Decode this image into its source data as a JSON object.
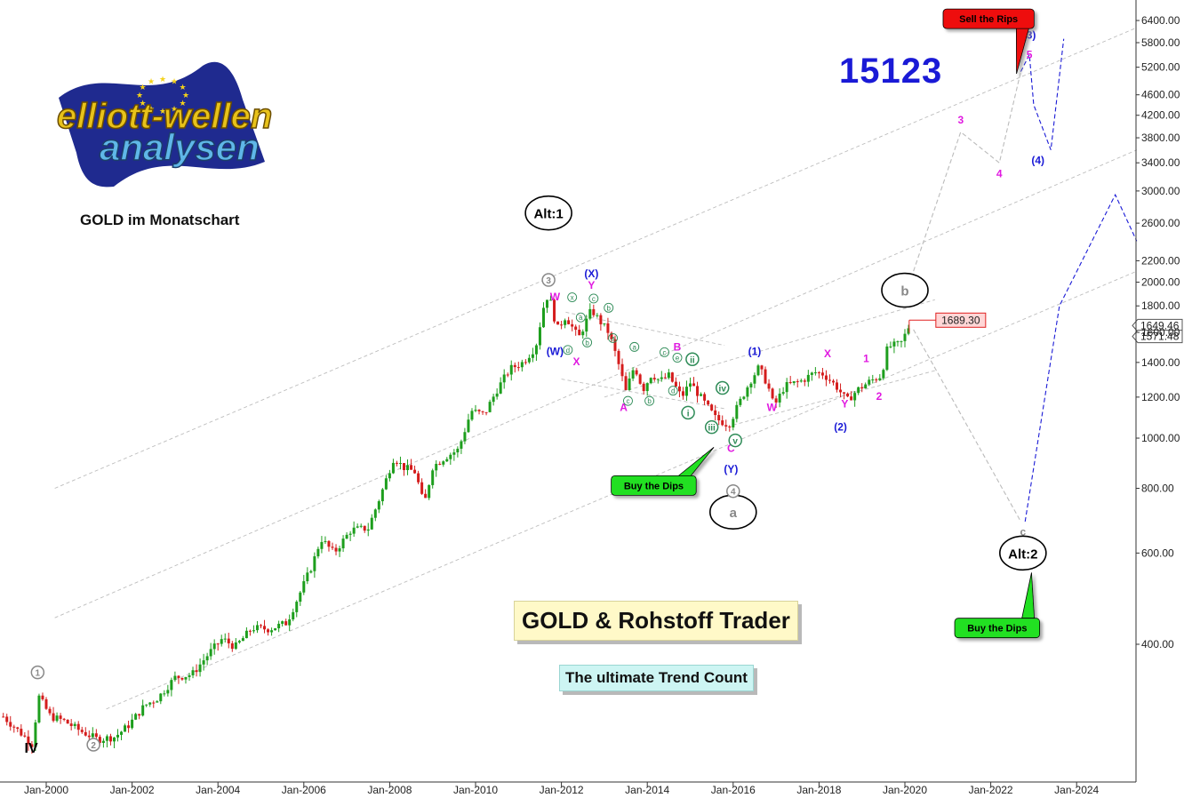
{
  "header": {
    "title": "GOLD im Monatschart",
    "ticker_id": "15123"
  },
  "logo": {
    "line1": "elliott-wellen",
    "line2": "analysen",
    "colors": {
      "flag": "#1f2a8f",
      "stars": "#f4d21a",
      "gold_text": "#e8c21a",
      "blue_text": "#5fb7e8"
    }
  },
  "promo": {
    "main": "GOLD & Rohstoff Trader",
    "sub": "The ultimate Trend Count"
  },
  "chart_data": {
    "type": "candlestick",
    "scale": "log",
    "ylim": [
      250,
      7000
    ],
    "xlim": [
      "1999-01",
      "2025-06"
    ],
    "y_ticks": [
      "400.00",
      "600.00",
      "800.00",
      "1000.00",
      "1200.00",
      "1400.00",
      "1600.00",
      "1800.00",
      "2000.00",
      "2200.00",
      "2600.00",
      "3000.00",
      "3400.00",
      "3800.00",
      "4200.00",
      "4600.00",
      "5200.00",
      "5800.00",
      "6400.00"
    ],
    "y_tick_values": [
      400,
      600,
      800,
      1000,
      1200,
      1400,
      1600,
      1800,
      2000,
      2200,
      2600,
      3000,
      3400,
      3800,
      4200,
      4600,
      5200,
      5800,
      6400
    ],
    "x_ticks": [
      "Jan-2000",
      "Jan-2002",
      "Jan-2004",
      "Jan-2006",
      "Jan-2008",
      "Jan-2010",
      "Jan-2012",
      "Jan-2014",
      "Jan-2016",
      "Jan-2018",
      "Jan-2020",
      "Jan-2022",
      "Jan-2024"
    ],
    "x_tick_values": [
      2000,
      2002,
      2004,
      2006,
      2008,
      2010,
      2012,
      2014,
      2016,
      2018,
      2020,
      2022,
      2024
    ],
    "price_labels": [
      {
        "text": "1649.46",
        "value": 1649.46,
        "style": "axis"
      },
      {
        "text": "1571.48",
        "value": 1571.48,
        "style": "axis"
      },
      {
        "text": "1689.30",
        "value": 1689.3,
        "style": "marker",
        "t": 2020.1
      }
    ],
    "price_path": [
      [
        1999.0,
        290
      ],
      [
        1999.4,
        270
      ],
      [
        1999.7,
        255
      ],
      [
        1999.8,
        320
      ],
      [
        2000.1,
        290
      ],
      [
        2000.4,
        285
      ],
      [
        2000.8,
        272
      ],
      [
        2001.2,
        262
      ],
      [
        2001.6,
        265
      ],
      [
        2001.9,
        278
      ],
      [
        2002.3,
        305
      ],
      [
        2002.6,
        315
      ],
      [
        2003.0,
        345
      ],
      [
        2003.4,
        350
      ],
      [
        2003.8,
        385
      ],
      [
        2004.1,
        410
      ],
      [
        2004.4,
        395
      ],
      [
        2004.8,
        430
      ],
      [
        2005.2,
        428
      ],
      [
        2005.6,
        440
      ],
      [
        2005.9,
        500
      ],
      [
        2006.2,
        570
      ],
      [
        2006.4,
        640
      ],
      [
        2006.7,
        600
      ],
      [
        2007.1,
        665
      ],
      [
        2007.5,
        670
      ],
      [
        2007.8,
        780
      ],
      [
        2008.1,
        920
      ],
      [
        2008.3,
        880
      ],
      [
        2008.6,
        860
      ],
      [
        2008.8,
        740
      ],
      [
        2009.0,
        880
      ],
      [
        2009.3,
        920
      ],
      [
        2009.6,
        950
      ],
      [
        2009.9,
        1130
      ],
      [
        2010.2,
        1110
      ],
      [
        2010.5,
        1240
      ],
      [
        2010.8,
        1360
      ],
      [
        2011.1,
        1400
      ],
      [
        2011.4,
        1500
      ],
      [
        2011.6,
        1820
      ],
      [
        2011.7,
        1900
      ],
      [
        2011.9,
        1620
      ],
      [
        2012.1,
        1720
      ],
      [
        2012.4,
        1560
      ],
      [
        2012.7,
        1770
      ],
      [
        2012.9,
        1680
      ],
      [
        2013.1,
        1600
      ],
      [
        2013.3,
        1420
      ],
      [
        2013.5,
        1230
      ],
      [
        2013.7,
        1380
      ],
      [
        2013.9,
        1240
      ],
      [
        2014.1,
        1330
      ],
      [
        2014.3,
        1290
      ],
      [
        2014.5,
        1320
      ],
      [
        2014.8,
        1200
      ],
      [
        2015.0,
        1280
      ],
      [
        2015.3,
        1180
      ],
      [
        2015.6,
        1090
      ],
      [
        2015.9,
        1060
      ],
      [
        2016.1,
        1150
      ],
      [
        2016.4,
        1290
      ],
      [
        2016.6,
        1370
      ],
      [
        2016.8,
        1270
      ],
      [
        2016.95,
        1150
      ],
      [
        2017.2,
        1260
      ],
      [
        2017.6,
        1290
      ],
      [
        2017.9,
        1340
      ],
      [
        2018.1,
        1330
      ],
      [
        2018.4,
        1260
      ],
      [
        2018.65,
        1180
      ],
      [
        2018.9,
        1240
      ],
      [
        2019.2,
        1290
      ],
      [
        2019.45,
        1320
      ],
      [
        2019.6,
        1500
      ],
      [
        2019.9,
        1520
      ],
      [
        2020.0,
        1580
      ],
      [
        2020.1,
        1650
      ]
    ],
    "projections": [
      {
        "name": "grey-path-up",
        "color": "#bbbbbb",
        "points": [
          [
            2020.2,
            2100
          ],
          [
            2021.3,
            3900
          ],
          [
            2022.2,
            3400
          ],
          [
            2022.7,
            5100
          ]
        ]
      },
      {
        "name": "grey-path-down",
        "color": "#bbbbbb",
        "points": [
          [
            2020.2,
            1620
          ],
          [
            2022.7,
            690
          ]
        ]
      },
      {
        "name": "blue-path-up",
        "color": "#1a1ad6",
        "points": [
          [
            2022.7,
            5100
          ],
          [
            2022.9,
            5500
          ],
          [
            2023.0,
            4400
          ],
          [
            2023.4,
            3600
          ],
          [
            2023.7,
            5900
          ]
        ]
      },
      {
        "name": "blue-path-alt",
        "color": "#1a1ad6",
        "points": [
          [
            2022.8,
            690
          ],
          [
            2023.6,
            1800
          ],
          [
            2024.9,
            2950
          ],
          [
            2025.4,
            2400
          ]
        ]
      }
    ],
    "channels": [
      {
        "from": [
          2000.2,
          800
        ],
        "to": [
          2025.4,
          6200
        ]
      },
      {
        "from": [
          2000.2,
          450
        ],
        "to": [
          2025.4,
          3600
        ]
      },
      {
        "from": [
          2001.4,
          300
        ],
        "to": [
          2025.4,
          2100
        ]
      },
      {
        "from": [
          2013.0,
          1200
        ],
        "to": [
          2020.7,
          1850
        ]
      },
      {
        "from": [
          2016.0,
          1060
        ],
        "to": [
          2020.7,
          1350
        ]
      },
      {
        "from": [
          2012.1,
          1750
        ],
        "to": [
          2015.8,
          1510
        ]
      },
      {
        "from": [
          2012.0,
          1300
        ],
        "to": [
          2015.8,
          1140
        ]
      }
    ],
    "labels": [
      {
        "text": "Alt:1",
        "t": 2011.7,
        "v": 2720,
        "color": "#000000",
        "style": "ellipse"
      },
      {
        "text": "b",
        "t": 2020.0,
        "v": 1930,
        "color": "#888888",
        "style": "ellipse"
      },
      {
        "text": "a",
        "t": 2016.0,
        "v": 720,
        "color": "#888888",
        "style": "ellipse"
      },
      {
        "text": "Alt:2",
        "t": 2022.75,
        "v": 600,
        "color": "#000000",
        "style": "ellipse"
      },
      {
        "text": "c",
        "t": 2022.75,
        "v": 662,
        "color": "#888888",
        "style": "plain"
      },
      {
        "text": "3",
        "t": 2011.7,
        "v": 2020,
        "color": "#888888",
        "style": "circle"
      },
      {
        "text": "4",
        "t": 2016.0,
        "v": 790,
        "color": "#888888",
        "style": "circle"
      },
      {
        "text": "1",
        "t": 1999.8,
        "v": 353,
        "color": "#888888",
        "style": "circle"
      },
      {
        "text": "2",
        "t": 2001.1,
        "v": 256,
        "color": "#888888",
        "style": "circle"
      },
      {
        "text": "IV",
        "t": 1999.65,
        "v": 252,
        "color": "#000000",
        "style": "bold"
      },
      {
        "text": "(X)",
        "t": 2012.7,
        "v": 2085,
        "color": "#1a1ad6",
        "style": "plain"
      },
      {
        "text": "Y",
        "t": 2012.7,
        "v": 1980,
        "color": "#e01ae0",
        "style": "plain"
      },
      {
        "text": "W",
        "t": 2011.85,
        "v": 1880,
        "color": "#e01ae0",
        "style": "plain"
      },
      {
        "text": "(W)",
        "t": 2011.85,
        "v": 1475,
        "color": "#1a1ad6",
        "style": "plain"
      },
      {
        "text": "X",
        "t": 2012.35,
        "v": 1410,
        "color": "#e01ae0",
        "style": "plain"
      },
      {
        "text": "B",
        "t": 2014.7,
        "v": 1505,
        "color": "#e01ae0",
        "style": "plain"
      },
      {
        "text": "A",
        "t": 2013.45,
        "v": 1150,
        "color": "#e01ae0",
        "style": "plain"
      },
      {
        "text": "C",
        "t": 2015.95,
        "v": 960,
        "color": "#e01ae0",
        "style": "plain"
      },
      {
        "text": "(Y)",
        "t": 2015.95,
        "v": 875,
        "color": "#1a1ad6",
        "style": "plain"
      },
      {
        "text": "(1)",
        "t": 2016.5,
        "v": 1475,
        "color": "#1a1ad6",
        "style": "plain"
      },
      {
        "text": "W",
        "t": 2016.9,
        "v": 1150,
        "color": "#e01ae0",
        "style": "plain"
      },
      {
        "text": "X",
        "t": 2018.2,
        "v": 1460,
        "color": "#e01ae0",
        "style": "plain"
      },
      {
        "text": "1",
        "t": 2019.1,
        "v": 1430,
        "color": "#e01ae0",
        "style": "plain"
      },
      {
        "text": "Y",
        "t": 2018.6,
        "v": 1170,
        "color": "#e01ae0",
        "style": "plain"
      },
      {
        "text": "2",
        "t": 2019.4,
        "v": 1210,
        "color": "#e01ae0",
        "style": "plain"
      },
      {
        "text": "(2)",
        "t": 2018.5,
        "v": 1055,
        "color": "#1a1ad6",
        "style": "plain"
      },
      {
        "text": "3",
        "t": 2021.3,
        "v": 4130,
        "color": "#e01ae0",
        "style": "plain"
      },
      {
        "text": "4",
        "t": 2022.2,
        "v": 3250,
        "color": "#e01ae0",
        "style": "plain"
      },
      {
        "text": "(3)",
        "t": 2022.9,
        "v": 6020,
        "color": "#1a1ad6",
        "style": "plain"
      },
      {
        "text": "5",
        "t": 2022.9,
        "v": 5520,
        "color": "#e01ae0",
        "style": "plain"
      },
      {
        "text": "(4)",
        "t": 2023.1,
        "v": 3450,
        "color": "#1a1ad6",
        "style": "plain"
      },
      {
        "text": "ii",
        "t": 2015.05,
        "v": 1420,
        "color": "#2e8b57",
        "style": "circle"
      },
      {
        "text": "i",
        "t": 2014.95,
        "v": 1120,
        "color": "#2e8b57",
        "style": "circle"
      },
      {
        "text": "iii",
        "t": 2015.5,
        "v": 1050,
        "color": "#2e8b57",
        "style": "circle"
      },
      {
        "text": "iv",
        "t": 2015.75,
        "v": 1250,
        "color": "#2e8b57",
        "style": "circle"
      },
      {
        "text": "v",
        "t": 2016.05,
        "v": 990,
        "color": "#2e8b57",
        "style": "circle"
      },
      {
        "text": "x",
        "t": 2012.25,
        "v": 1870,
        "color": "#2e8b57",
        "style": "small"
      },
      {
        "text": "a",
        "t": 2012.45,
        "v": 1710,
        "color": "#2e8b57",
        "style": "small"
      },
      {
        "text": "c",
        "t": 2012.75,
        "v": 1860,
        "color": "#2e8b57",
        "style": "small"
      },
      {
        "text": "b",
        "t": 2013.1,
        "v": 1785,
        "color": "#2e8b57",
        "style": "small"
      },
      {
        "text": "a",
        "t": 2013.2,
        "v": 1560,
        "color": "#2e8b57",
        "style": "small"
      },
      {
        "text": "b",
        "t": 2012.6,
        "v": 1530,
        "color": "#2e8b57",
        "style": "small"
      },
      {
        "text": "d",
        "t": 2012.15,
        "v": 1480,
        "color": "#2e8b57",
        "style": "small"
      },
      {
        "text": "c",
        "t": 2013.55,
        "v": 1180,
        "color": "#2e8b57",
        "style": "small"
      },
      {
        "text": "b",
        "t": 2014.05,
        "v": 1180,
        "color": "#2e8b57",
        "style": "small"
      },
      {
        "text": "d",
        "t": 2014.6,
        "v": 1235,
        "color": "#2e8b57",
        "style": "small"
      },
      {
        "text": "c",
        "t": 2014.4,
        "v": 1465,
        "color": "#2e8b57",
        "style": "small"
      },
      {
        "text": "e",
        "t": 2014.7,
        "v": 1430,
        "color": "#2e8b57",
        "style": "small"
      },
      {
        "text": "a",
        "t": 2013.7,
        "v": 1500,
        "color": "#2e8b57",
        "style": "small"
      }
    ],
    "callouts": [
      {
        "text": "Sell the Rips",
        "t": 2021.95,
        "v": 6450,
        "tip_t": 2022.6,
        "tip_v": 5050,
        "fill": "#ee1111",
        "text_color": "#000000"
      },
      {
        "text": "Buy the Dips",
        "t": 2014.15,
        "v": 810,
        "tip_t": 2015.55,
        "tip_v": 960,
        "fill": "#22e022",
        "text_color": "#000000"
      },
      {
        "text": "Buy the Dips",
        "t": 2022.15,
        "v": 430,
        "tip_t": 2022.95,
        "tip_v": 550,
        "fill": "#22e022",
        "text_color": "#000000"
      }
    ]
  }
}
